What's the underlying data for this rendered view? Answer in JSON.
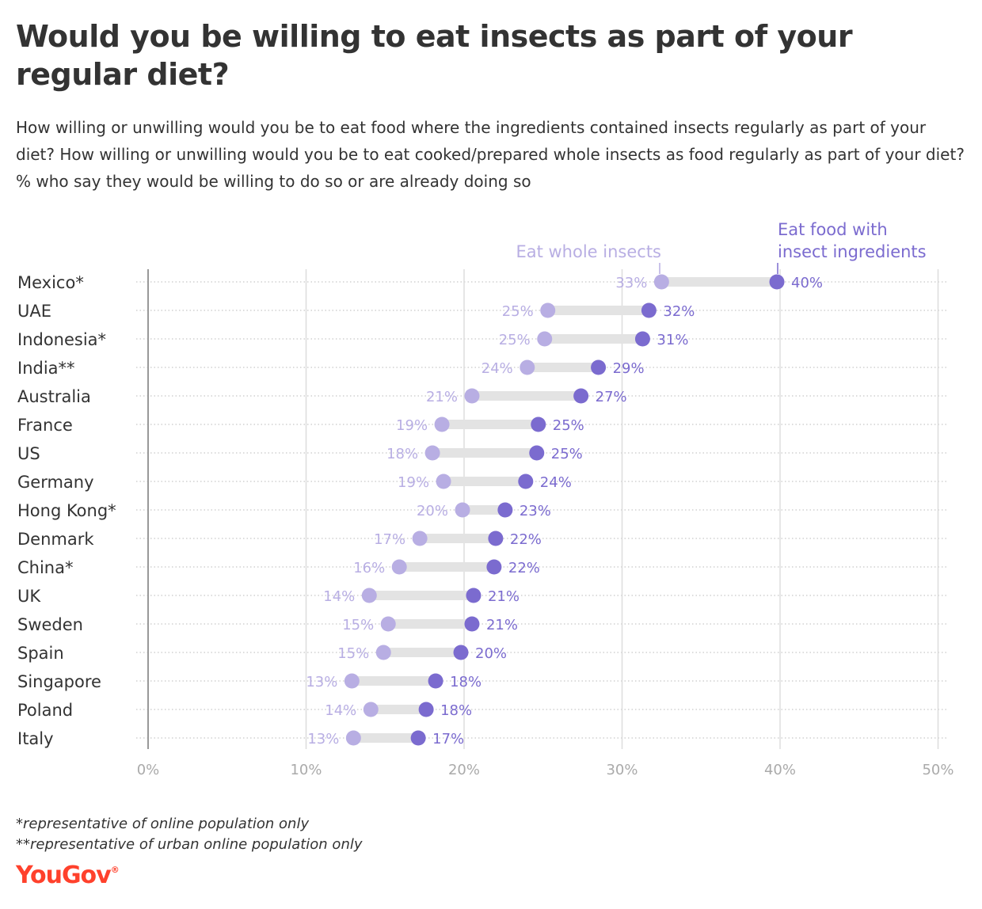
{
  "title": "Would you be willing to eat insects as part of your regular diet?",
  "subtitle": "How willing or unwilling would you be to eat food where the ingredients contained insects regularly as part of your diet? How willing or unwilling would you be to eat cooked/prepared whole insects as food regularly as part of your diet? % who say they would be willing to do so or are already doing so",
  "footnotes": {
    "note1": "*representative of online population only",
    "note2": "**representative of urban online population only"
  },
  "brand": {
    "name": "YouGov",
    "mark": "®"
  },
  "colors": {
    "whole": "#b8aee3",
    "ingredients": "#7b6bcf",
    "connector": "#e3e3e3",
    "grid": "#c8c8c8",
    "axis": "#999999",
    "tick_text": "#aaaaaa",
    "brand": "#ff412c"
  },
  "chart_data": {
    "type": "dumbbell",
    "x_axis": {
      "ticks": [
        0,
        10,
        20,
        30,
        40,
        50
      ],
      "tick_labels": [
        "0%",
        "10%",
        "20%",
        "30%",
        "40%",
        "50%"
      ],
      "range": [
        0,
        50
      ]
    },
    "categories": [
      "Mexico*",
      "UAE",
      "Indonesia*",
      "India**",
      "Australia",
      "France",
      "US",
      "Germany",
      "Hong Kong*",
      "Denmark",
      "China*",
      "UK",
      "Sweden",
      "Spain",
      "Singapore",
      "Poland",
      "Italy"
    ],
    "series": [
      {
        "name": "Eat whole insects",
        "values": [
          32.5,
          25.3,
          25.1,
          24.0,
          20.5,
          18.6,
          18.0,
          18.7,
          19.9,
          17.2,
          15.9,
          14.0,
          15.2,
          14.9,
          12.9,
          14.1,
          13.0
        ],
        "labels": [
          "33%",
          "25%",
          "25%",
          "24%",
          "21%",
          "19%",
          "18%",
          "19%",
          "20%",
          "17%",
          "16%",
          "14%",
          "15%",
          "15%",
          "13%",
          "14%",
          "13%"
        ]
      },
      {
        "name": "Eat food with insect ingredients",
        "values": [
          39.8,
          31.7,
          31.3,
          28.5,
          27.4,
          24.7,
          24.6,
          23.9,
          22.6,
          22.0,
          21.9,
          20.6,
          20.5,
          19.8,
          18.2,
          17.6,
          17.1
        ],
        "labels": [
          "40%",
          "32%",
          "31%",
          "29%",
          "27%",
          "25%",
          "25%",
          "24%",
          "23%",
          "22%",
          "22%",
          "21%",
          "21%",
          "20%",
          "18%",
          "18%",
          "17%"
        ]
      }
    ],
    "legend": {
      "whole": "Eat whole insects",
      "ingredients_line1": "Eat food with",
      "ingredients_line2": "insect ingredients"
    },
    "grid": true
  }
}
